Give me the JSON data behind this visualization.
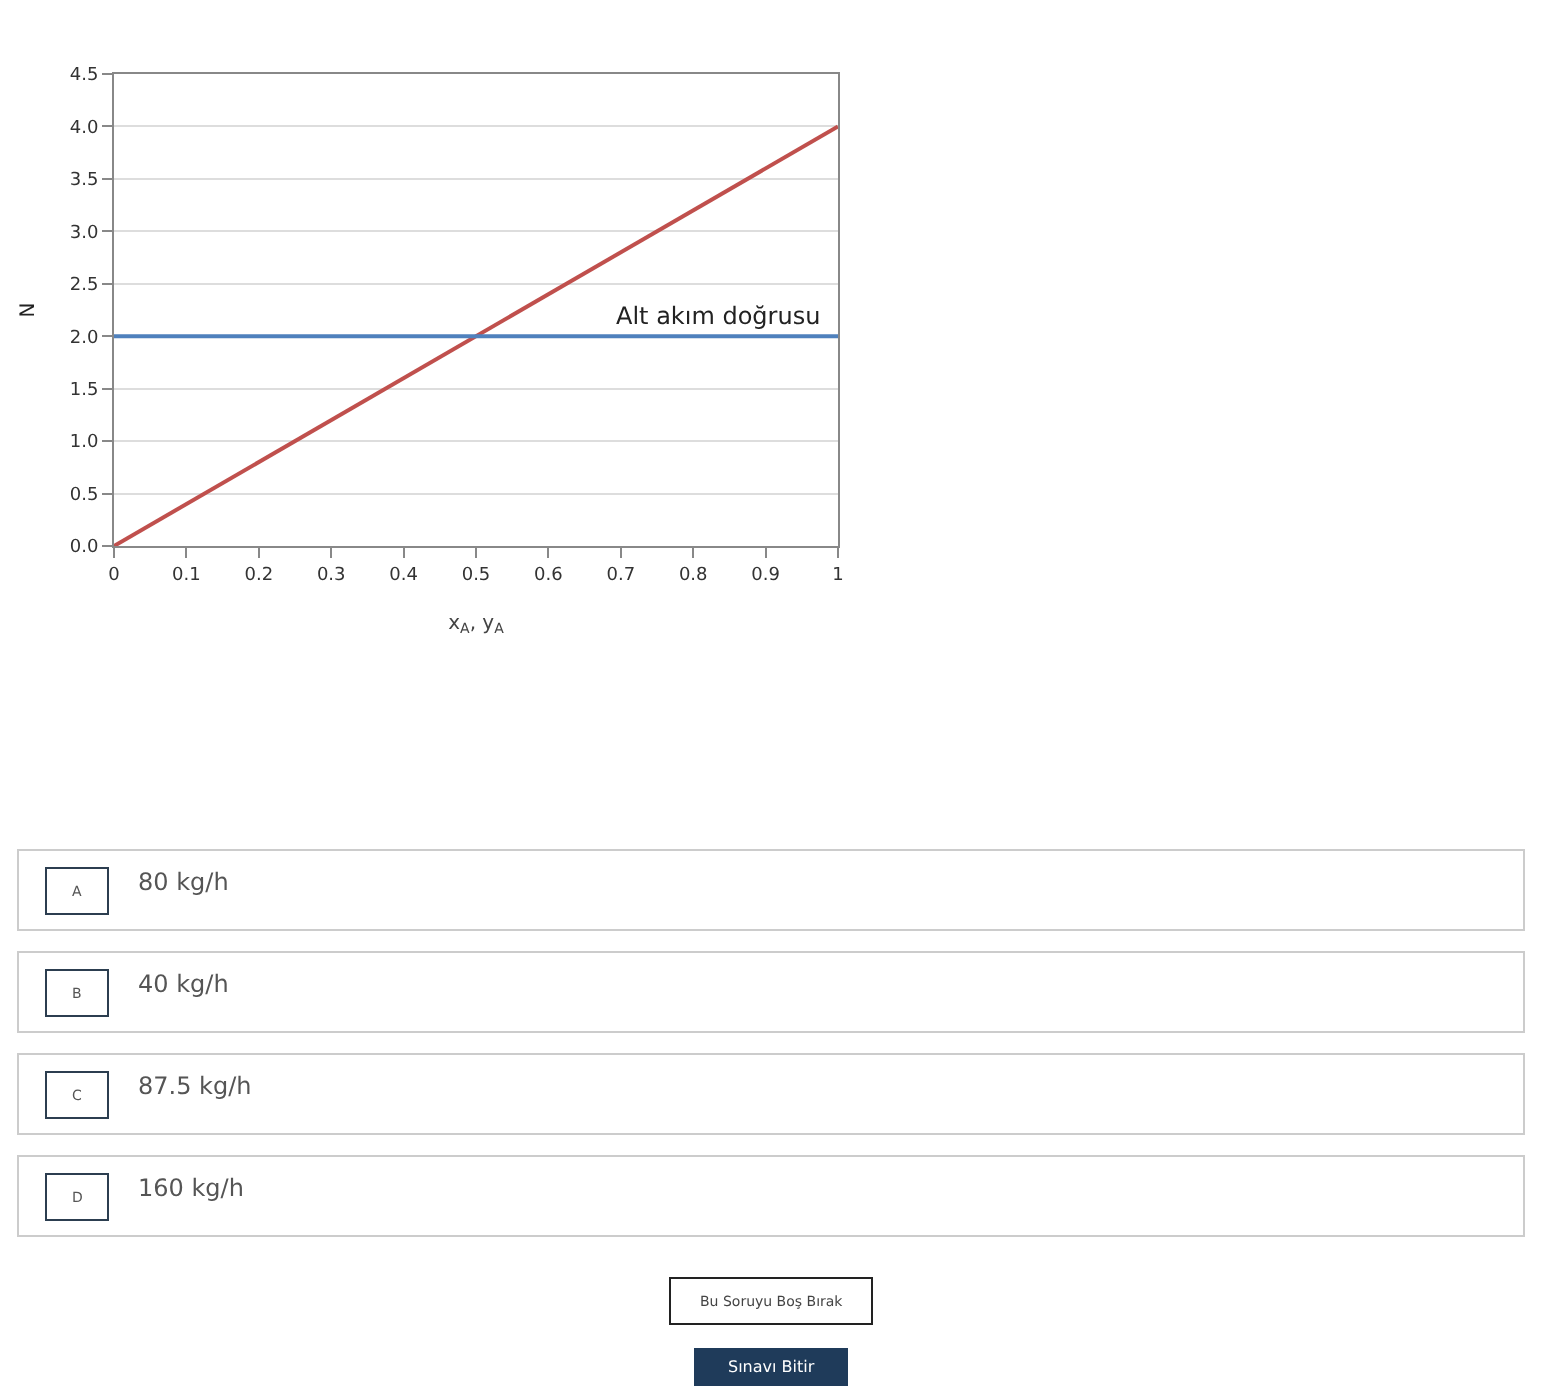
{
  "chart_data": {
    "type": "line",
    "xlabel": "x$_{A}$, y$_{A}$",
    "ylabel": "N",
    "x": [
      0,
      1
    ],
    "series": [
      {
        "color": "#c0504d",
        "values": [
          0,
          4
        ]
      }
    ],
    "ref_lines": [
      {
        "axis": "y",
        "value": 2,
        "label": "Alt akım doğrusu",
        "color": "#4f81bd",
        "line_style": "solid"
      }
    ],
    "xlim": [
      0,
      1
    ],
    "xticks": [
      0,
      0.1,
      0.2,
      0.3,
      0.4,
      0.5,
      0.6,
      0.7,
      0.8,
      0.9,
      1
    ],
    "ylim": [
      0,
      4.5
    ],
    "yticks": [
      {
        "value": 0,
        "label": "0.0"
      },
      {
        "value": 0.5,
        "label": "0.5"
      },
      {
        "value": 1,
        "label": "1.0"
      },
      {
        "value": 1.5,
        "label": "1.5"
      },
      {
        "value": 2,
        "label": "2.0"
      },
      {
        "value": 2.5,
        "label": "2.5"
      },
      {
        "value": 3,
        "label": "3.0"
      },
      {
        "value": 3.5,
        "label": "3.5"
      },
      {
        "value": 4,
        "label": "4.0"
      },
      {
        "value": 4.5,
        "label": "4.5"
      }
    ],
    "grid": "y",
    "marker": "none",
    "line_style": "solid",
    "annotations": [
      "A",
      "80 kg/h",
      "B",
      "40 kg/h",
      "C",
      "87.5 kg/h",
      "D",
      "160 kg/h",
      "Bu Soruyu Boş Bırak",
      "Sınavı Bitir"
    ]
  }
}
